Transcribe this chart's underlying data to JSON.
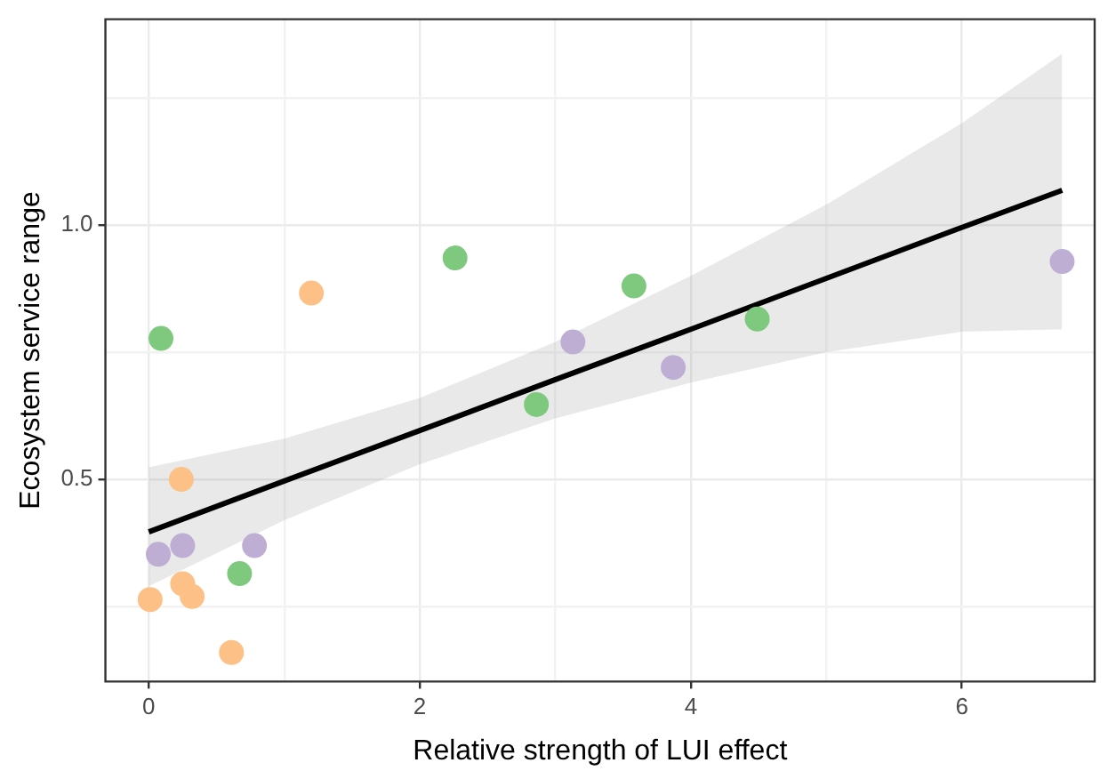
{
  "chart_data": {
    "type": "scatter",
    "xlabel": "Relative strength of LUI effect",
    "ylabel": "Ecosystem service range",
    "xlim": [
      -0.32,
      6.98
    ],
    "xticks": [
      0,
      {
        "value": 1,
        "label": null
      },
      2,
      {
        "value": 3,
        "label": null
      },
      4,
      {
        "value": 5,
        "label": null
      },
      6
    ],
    "ylim": [
      0.103,
      1.404
    ],
    "yticks": [
      {
        "value": 0.25,
        "label": null
      },
      0.5,
      {
        "value": 0.75,
        "label": null
      },
      {
        "value": 1,
        "label": "1.0"
      },
      {
        "value": 1.25,
        "label": null
      }
    ],
    "grid": true,
    "legend": false,
    "marker": "circle",
    "series": [
      {
        "color": "#7fc97f",
        "x": [
          0.09,
          2.26,
          3.58,
          2.86,
          4.49,
          0.67
        ],
        "values": [
          0.777,
          0.935,
          0.88,
          0.647,
          0.815,
          0.315
        ]
      },
      {
        "color": "#fdc086",
        "x": [
          0.01,
          0.24,
          0.25,
          0.32,
          0.61,
          1.2
        ],
        "values": [
          0.264,
          0.5,
          0.295,
          0.27,
          0.16,
          0.866
        ]
      },
      {
        "color": "#beaed4",
        "x": [
          0.07,
          0.25,
          0.78,
          3.13,
          3.87,
          6.74
        ],
        "values": [
          0.353,
          0.37,
          0.37,
          0.77,
          0.72,
          0.928
        ]
      },
      {
        "type": "line",
        "color": "#000000",
        "marker": "none",
        "line_style": "solid",
        "x": [
          0,
          1,
          2,
          3,
          4,
          5,
          6,
          6.74
        ],
        "values": [
          0.397,
          0.497,
          0.596,
          0.696,
          0.795,
          0.895,
          0.995,
          1.068
        ],
        "lower": [
          0.29,
          0.42,
          0.53,
          0.62,
          0.69,
          0.75,
          0.79,
          0.795
        ],
        "upper": [
          0.524,
          0.58,
          0.66,
          0.77,
          0.9,
          1.04,
          1.2,
          1.336
        ]
      }
    ]
  }
}
